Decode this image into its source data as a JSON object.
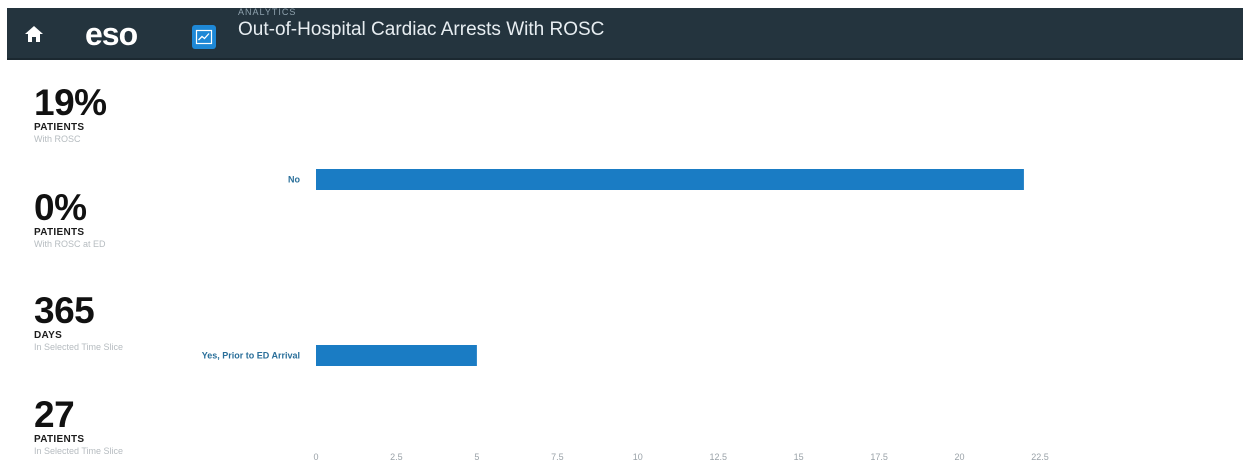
{
  "header": {
    "home_icon": "home-icon",
    "logo_text": "eso",
    "app_icon": "chart-line-icon",
    "section_label": "ANALYTICS",
    "title": "Out-of-Hospital Cardiac Arrests With ROSC",
    "colors": {
      "bar_bg": "#24343e",
      "app_icon_bg": "#1e88d6"
    }
  },
  "stats": [
    {
      "value": "19%",
      "unit": "PATIENTS",
      "sub": "With ROSC"
    },
    {
      "value": "0%",
      "unit": "PATIENTS",
      "sub": "With ROSC at ED"
    },
    {
      "value": "365",
      "unit": "DAYS",
      "sub": "In Selected Time Slice"
    },
    {
      "value": "27",
      "unit": "PATIENTS",
      "sub": "In Selected Time Slice"
    }
  ],
  "chart_data": {
    "type": "bar",
    "orientation": "horizontal",
    "categories": [
      "No",
      "Yes, Prior to ED Arrival"
    ],
    "values": [
      22,
      5
    ],
    "xlim": [
      0,
      22.5
    ],
    "xticks": [
      "0",
      "2.5",
      "5",
      "7.5",
      "10",
      "12.5",
      "15",
      "17.5",
      "20",
      "22.5"
    ],
    "bar_color": "#1a7cc4",
    "grid": false,
    "title": "",
    "xlabel": "",
    "ylabel": ""
  }
}
